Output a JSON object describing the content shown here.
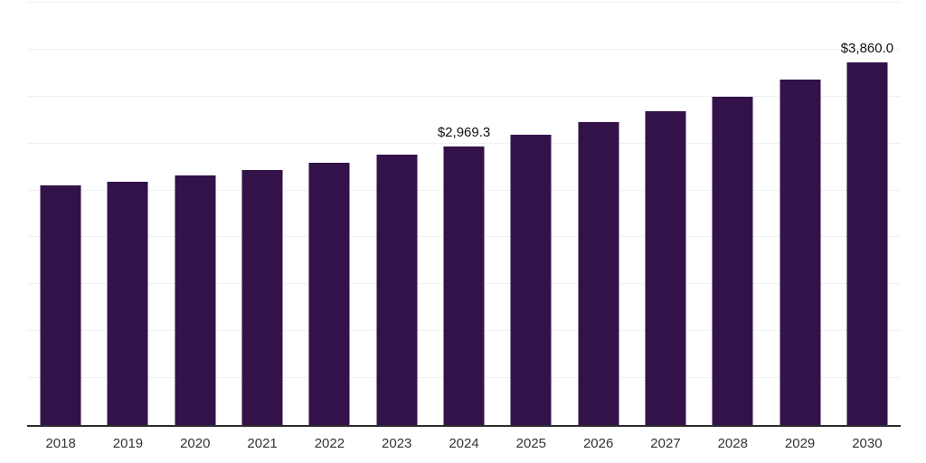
{
  "chart_data": {
    "type": "bar",
    "title": "",
    "xlabel": "",
    "ylabel": "",
    "categories": [
      "2018",
      "2019",
      "2020",
      "2021",
      "2022",
      "2023",
      "2024",
      "2025",
      "2026",
      "2027",
      "2028",
      "2029",
      "2030"
    ],
    "values": [
      2550,
      2595,
      2655,
      2715,
      2790,
      2885,
      2969.3,
      3090,
      3225,
      3345,
      3495,
      3680,
      3860
    ],
    "point_labels": [
      null,
      null,
      null,
      null,
      null,
      null,
      "$2,969.3",
      null,
      null,
      null,
      null,
      null,
      "$3,860.0"
    ],
    "ylim": [
      0,
      4500
    ],
    "gridline_step": 500,
    "grid": "horizontal-light",
    "legend": "none",
    "colors": {
      "bar": "#331249",
      "axis_line": "#2b2b2b",
      "gridline": "#f1f1f3",
      "tick_label": "#333333",
      "value_label": "#111111",
      "background": "#ffffff"
    }
  }
}
